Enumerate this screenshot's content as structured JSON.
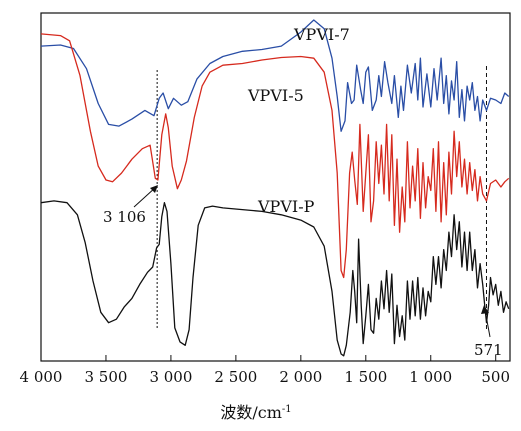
{
  "chart_data": {
    "type": "line",
    "title": "",
    "xlabel": "波数/cm-1",
    "xlabel_parts": {
      "main": "波数/cm",
      "sup": "-1"
    },
    "ylabel": "",
    "xlim": [
      4000,
      390
    ],
    "x_reversed": true,
    "ylim": [
      0,
      10
    ],
    "y_ticks_shown": false,
    "grid": false,
    "x_ticks": [
      4000,
      3500,
      3000,
      2500,
      2000,
      1500,
      1000,
      500
    ],
    "x_tick_labels": [
      "4 000",
      "3 500",
      "3 000",
      "2 500",
      "2 000",
      "1 500",
      "1 000",
      "500"
    ],
    "series": [
      {
        "name": "VPVI-7",
        "color": "#2a4ea6",
        "points": [
          [
            4000,
            9.05
          ],
          [
            3850,
            9.08
          ],
          [
            3750,
            8.98
          ],
          [
            3650,
            8.4
          ],
          [
            3560,
            7.4
          ],
          [
            3480,
            6.8
          ],
          [
            3400,
            6.75
          ],
          [
            3300,
            6.95
          ],
          [
            3200,
            7.2
          ],
          [
            3130,
            7.05
          ],
          [
            3090,
            7.55
          ],
          [
            3060,
            7.7
          ],
          [
            3020,
            7.25
          ],
          [
            2980,
            7.55
          ],
          [
            2920,
            7.35
          ],
          [
            2870,
            7.45
          ],
          [
            2800,
            8.1
          ],
          [
            2700,
            8.55
          ],
          [
            2600,
            8.75
          ],
          [
            2450,
            8.9
          ],
          [
            2300,
            8.95
          ],
          [
            2150,
            9.05
          ],
          [
            2000,
            9.45
          ],
          [
            1900,
            9.8
          ],
          [
            1820,
            9.55
          ],
          [
            1760,
            8.7
          ],
          [
            1720,
            7.6
          ],
          [
            1690,
            6.6
          ],
          [
            1660,
            6.9
          ],
          [
            1640,
            8.0
          ],
          [
            1610,
            7.4
          ],
          [
            1590,
            7.5
          ],
          [
            1570,
            8.5
          ],
          [
            1540,
            7.8
          ],
          [
            1520,
            7.4
          ],
          [
            1500,
            8.3
          ],
          [
            1480,
            8.45
          ],
          [
            1450,
            7.2
          ],
          [
            1420,
            7.5
          ],
          [
            1400,
            8.2
          ],
          [
            1380,
            7.6
          ],
          [
            1355,
            8.6
          ],
          [
            1330,
            8.0
          ],
          [
            1300,
            7.4
          ],
          [
            1280,
            8.2
          ],
          [
            1250,
            7.0
          ],
          [
            1230,
            7.9
          ],
          [
            1210,
            7.2
          ],
          [
            1180,
            8.5
          ],
          [
            1150,
            7.7
          ],
          [
            1120,
            8.55
          ],
          [
            1100,
            7.5
          ],
          [
            1080,
            8.7
          ],
          [
            1060,
            7.3
          ],
          [
            1030,
            8.25
          ],
          [
            1000,
            7.3
          ],
          [
            975,
            8.4
          ],
          [
            950,
            7.5
          ],
          [
            920,
            8.7
          ],
          [
            900,
            7.4
          ],
          [
            880,
            8.2
          ],
          [
            860,
            7.1
          ],
          [
            840,
            8.05
          ],
          [
            820,
            7.5
          ],
          [
            800,
            8.6
          ],
          [
            780,
            7.0
          ],
          [
            760,
            7.8
          ],
          [
            740,
            6.9
          ],
          [
            720,
            7.9
          ],
          [
            700,
            7.5
          ],
          [
            680,
            8.0
          ],
          [
            660,
            7.2
          ],
          [
            640,
            7.6
          ],
          [
            620,
            6.9
          ],
          [
            600,
            7.5
          ],
          [
            571,
            7.2
          ],
          [
            540,
            7.55
          ],
          [
            500,
            7.5
          ],
          [
            460,
            7.4
          ],
          [
            430,
            7.7
          ],
          [
            400,
            7.6
          ]
        ]
      },
      {
        "name": "VPVI-5",
        "color": "#d62a1e",
        "points": [
          [
            4000,
            9.4
          ],
          [
            3850,
            9.35
          ],
          [
            3780,
            9.2
          ],
          [
            3700,
            8.2
          ],
          [
            3620,
            6.6
          ],
          [
            3560,
            5.6
          ],
          [
            3500,
            5.2
          ],
          [
            3450,
            5.15
          ],
          [
            3380,
            5.4
          ],
          [
            3300,
            5.8
          ],
          [
            3220,
            6.1
          ],
          [
            3160,
            6.2
          ],
          [
            3120,
            5.25
          ],
          [
            3100,
            5.2
          ],
          [
            3070,
            6.5
          ],
          [
            3040,
            7.1
          ],
          [
            3020,
            6.7
          ],
          [
            2990,
            5.6
          ],
          [
            2950,
            4.95
          ],
          [
            2920,
            5.2
          ],
          [
            2880,
            5.75
          ],
          [
            2820,
            7.0
          ],
          [
            2760,
            7.9
          ],
          [
            2700,
            8.3
          ],
          [
            2600,
            8.5
          ],
          [
            2450,
            8.55
          ],
          [
            2300,
            8.65
          ],
          [
            2150,
            8.72
          ],
          [
            2000,
            8.75
          ],
          [
            1900,
            8.7
          ],
          [
            1820,
            8.3
          ],
          [
            1760,
            7.2
          ],
          [
            1720,
            5.4
          ],
          [
            1690,
            2.6
          ],
          [
            1670,
            2.4
          ],
          [
            1650,
            3.2
          ],
          [
            1625,
            5.4
          ],
          [
            1605,
            6.0
          ],
          [
            1585,
            5.2
          ],
          [
            1565,
            4.5
          ],
          [
            1545,
            6.8
          ],
          [
            1520,
            4.3
          ],
          [
            1500,
            5.4
          ],
          [
            1480,
            6.5
          ],
          [
            1460,
            4.0
          ],
          [
            1440,
            4.6
          ],
          [
            1420,
            6.3
          ],
          [
            1400,
            5.1
          ],
          [
            1380,
            6.2
          ],
          [
            1360,
            4.8
          ],
          [
            1340,
            6.8
          ],
          [
            1320,
            4.6
          ],
          [
            1300,
            6.5
          ],
          [
            1280,
            3.9
          ],
          [
            1260,
            5.8
          ],
          [
            1240,
            3.7
          ],
          [
            1220,
            5.0
          ],
          [
            1200,
            4.0
          ],
          [
            1180,
            6.3
          ],
          [
            1160,
            4.4
          ],
          [
            1140,
            5.6
          ],
          [
            1120,
            4.6
          ],
          [
            1100,
            6.1
          ],
          [
            1080,
            4.1
          ],
          [
            1060,
            5.7
          ],
          [
            1040,
            4.4
          ],
          [
            1020,
            5.3
          ],
          [
            1000,
            4.9
          ],
          [
            980,
            6.1
          ],
          [
            960,
            4.3
          ],
          [
            940,
            6.3
          ],
          [
            920,
            4.0
          ],
          [
            900,
            5.7
          ],
          [
            880,
            4.2
          ],
          [
            860,
            6.0
          ],
          [
            840,
            4.8
          ],
          [
            820,
            6.6
          ],
          [
            800,
            5.3
          ],
          [
            780,
            6.3
          ],
          [
            760,
            5.0
          ],
          [
            740,
            5.8
          ],
          [
            720,
            4.8
          ],
          [
            700,
            5.7
          ],
          [
            680,
            4.9
          ],
          [
            660,
            5.5
          ],
          [
            640,
            4.6
          ],
          [
            620,
            5.3
          ],
          [
            600,
            4.8
          ],
          [
            571,
            4.6
          ],
          [
            540,
            5.1
          ],
          [
            500,
            5.2
          ],
          [
            460,
            5.0
          ],
          [
            430,
            5.15
          ],
          [
            400,
            5.25
          ]
        ]
      },
      {
        "name": "VPVI-P",
        "color": "#111111",
        "points": [
          [
            4000,
            4.55
          ],
          [
            3900,
            4.6
          ],
          [
            3800,
            4.55
          ],
          [
            3720,
            4.2
          ],
          [
            3660,
            3.4
          ],
          [
            3600,
            2.3
          ],
          [
            3540,
            1.4
          ],
          [
            3480,
            1.1
          ],
          [
            3420,
            1.2
          ],
          [
            3360,
            1.55
          ],
          [
            3300,
            1.8
          ],
          [
            3240,
            2.2
          ],
          [
            3180,
            2.55
          ],
          [
            3140,
            2.7
          ],
          [
            3110,
            3.25
          ],
          [
            3090,
            3.35
          ],
          [
            3070,
            4.15
          ],
          [
            3050,
            4.55
          ],
          [
            3030,
            4.3
          ],
          [
            3000,
            2.8
          ],
          [
            2970,
            0.95
          ],
          [
            2930,
            0.55
          ],
          [
            2890,
            0.45
          ],
          [
            2860,
            0.9
          ],
          [
            2830,
            2.4
          ],
          [
            2790,
            3.9
          ],
          [
            2740,
            4.4
          ],
          [
            2680,
            4.45
          ],
          [
            2600,
            4.4
          ],
          [
            2450,
            4.35
          ],
          [
            2300,
            4.3
          ],
          [
            2150,
            4.2
          ],
          [
            2000,
            4.05
          ],
          [
            1900,
            3.85
          ],
          [
            1820,
            3.3
          ],
          [
            1760,
            2.0
          ],
          [
            1720,
            0.6
          ],
          [
            1690,
            0.2
          ],
          [
            1670,
            0.15
          ],
          [
            1650,
            0.45
          ],
          [
            1620,
            1.4
          ],
          [
            1600,
            2.6
          ],
          [
            1585,
            2.0
          ],
          [
            1570,
            1.1
          ],
          [
            1555,
            3.5
          ],
          [
            1535,
            1.6
          ],
          [
            1520,
            0.5
          ],
          [
            1500,
            1.3
          ],
          [
            1480,
            2.2
          ],
          [
            1460,
            0.9
          ],
          [
            1440,
            0.8
          ],
          [
            1420,
            1.8
          ],
          [
            1400,
            1.2
          ],
          [
            1380,
            2.3
          ],
          [
            1360,
            1.5
          ],
          [
            1340,
            2.6
          ],
          [
            1320,
            1.4
          ],
          [
            1300,
            2.5
          ],
          [
            1280,
            0.5
          ],
          [
            1260,
            1.6
          ],
          [
            1240,
            0.7
          ],
          [
            1220,
            1.3
          ],
          [
            1200,
            0.6
          ],
          [
            1180,
            2.3
          ],
          [
            1160,
            1.2
          ],
          [
            1140,
            2.3
          ],
          [
            1120,
            1.3
          ],
          [
            1100,
            2.4
          ],
          [
            1080,
            1.2
          ],
          [
            1060,
            2.1
          ],
          [
            1040,
            1.3
          ],
          [
            1020,
            2.0
          ],
          [
            1000,
            1.7
          ],
          [
            980,
            3.0
          ],
          [
            960,
            2.2
          ],
          [
            940,
            3.0
          ],
          [
            920,
            2.1
          ],
          [
            900,
            3.2
          ],
          [
            880,
            2.6
          ],
          [
            860,
            3.7
          ],
          [
            840,
            3.0
          ],
          [
            820,
            4.2
          ],
          [
            800,
            3.2
          ],
          [
            780,
            4.0
          ],
          [
            760,
            2.7
          ],
          [
            740,
            3.7
          ],
          [
            720,
            2.6
          ],
          [
            700,
            3.7
          ],
          [
            680,
            2.6
          ],
          [
            660,
            3.2
          ],
          [
            640,
            2.1
          ],
          [
            620,
            2.8
          ],
          [
            600,
            2.2
          ],
          [
            585,
            1.6
          ],
          [
            571,
            1.1
          ],
          [
            555,
            1.6
          ],
          [
            540,
            2.4
          ],
          [
            520,
            1.9
          ],
          [
            500,
            2.2
          ],
          [
            480,
            1.6
          ],
          [
            460,
            2.0
          ],
          [
            440,
            1.4
          ],
          [
            420,
            1.7
          ],
          [
            400,
            1.5
          ]
        ]
      }
    ],
    "series_labels": [
      "VPVI-7",
      "VPVI-5",
      "VPVI-P"
    ],
    "reference_lines": [
      {
        "x": 3106,
        "style": "dotted",
        "label": "3 106"
      },
      {
        "x": 571,
        "style": "dashed",
        "label": "571"
      }
    ]
  }
}
